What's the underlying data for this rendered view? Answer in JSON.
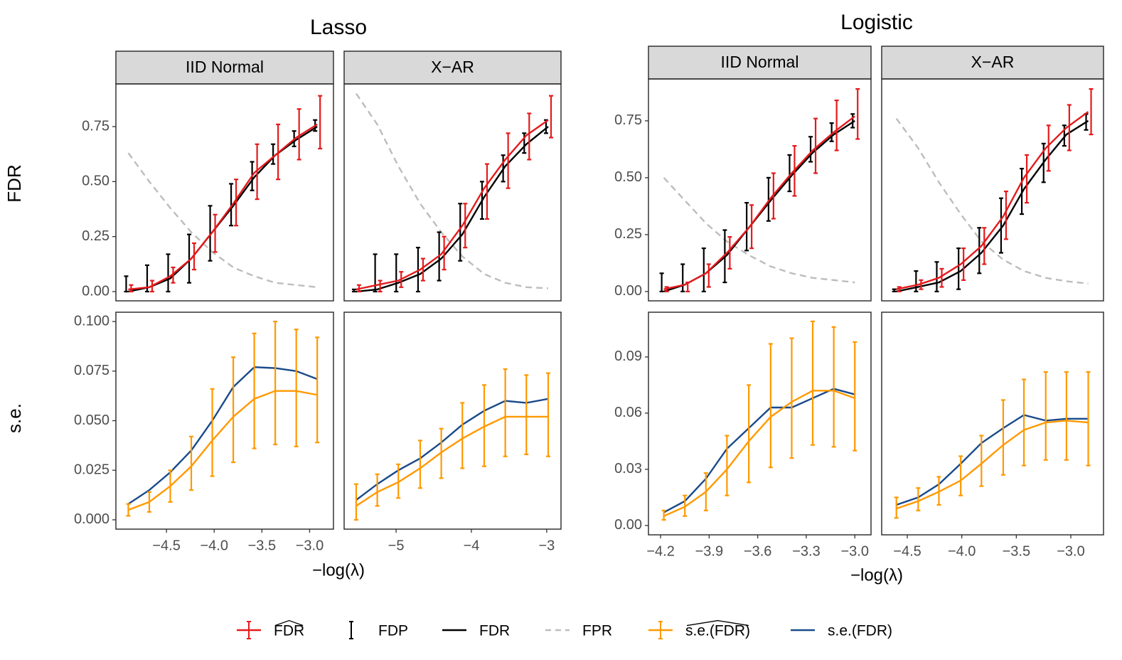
{
  "titles": [
    "Lasso",
    "Logistic"
  ],
  "row_labels": [
    "FDR",
    "s.e."
  ],
  "xlabels": [
    "−log(λ)",
    "−log(λ)"
  ],
  "chart_data": [
    {
      "type": "line",
      "strip": "IID Normal",
      "x": [
        -4.9,
        -4.68,
        -4.46,
        -4.24,
        -4.02,
        -3.8,
        -3.58,
        -3.36,
        -3.14,
        -2.92
      ],
      "xlim": [
        -5.03,
        -2.75
      ],
      "ylim": [
        -0.042,
        0.944
      ],
      "yticks": [
        {
          "value": 0,
          "label": "0.00"
        },
        0.25,
        {
          "value": 0.5,
          "label": "0.50"
        },
        0.75
      ],
      "series": [
        {
          "name": "FDR",
          "hat": true,
          "color": "#e41a1c",
          "values": [
            0.01,
            0.02,
            0.07,
            0.15,
            0.27,
            0.4,
            0.54,
            0.62,
            0.7,
            0.76
          ],
          "lower": [
            0.0,
            0.0,
            0.04,
            0.1,
            0.18,
            0.3,
            0.42,
            0.51,
            0.6,
            0.65
          ],
          "upper": [
            0.03,
            0.05,
            0.11,
            0.22,
            0.35,
            0.51,
            0.67,
            0.76,
            0.83,
            0.89
          ]
        },
        {
          "name": "FDP",
          "color": "#000000",
          "lower": [
            0.0,
            0.0,
            0.0,
            0.04,
            0.14,
            0.3,
            0.46,
            0.58,
            0.66,
            0.73
          ],
          "upper": [
            0.07,
            0.12,
            0.17,
            0.26,
            0.39,
            0.49,
            0.59,
            0.67,
            0.73,
            0.78
          ]
        },
        {
          "name": "FDR",
          "color": "#000000",
          "values": [
            0.0,
            0.02,
            0.06,
            0.15,
            0.27,
            0.39,
            0.52,
            0.62,
            0.69,
            0.75
          ]
        },
        {
          "name": "FPR",
          "color": "#bdbdbd",
          "dashed": true,
          "values": [
            0.63,
            0.5,
            0.38,
            0.27,
            0.18,
            0.11,
            0.07,
            0.04,
            0.03,
            0.02
          ]
        }
      ]
    },
    {
      "type": "line",
      "strip": "X−AR",
      "x": [
        -5.53,
        -5.25,
        -4.97,
        -4.68,
        -4.4,
        -4.12,
        -3.83,
        -3.55,
        -3.27,
        -2.98
      ],
      "xlim": [
        -5.69,
        -2.81
      ],
      "ylim": [
        -0.042,
        0.944
      ],
      "series": [
        {
          "name": "FDR",
          "hat": true,
          "color": "#e41a1c",
          "values": [
            0.01,
            0.03,
            0.05,
            0.1,
            0.17,
            0.3,
            0.47,
            0.6,
            0.71,
            0.78
          ],
          "lower": [
            0.0,
            0.0,
            0.02,
            0.05,
            0.1,
            0.2,
            0.33,
            0.47,
            0.6,
            0.7
          ],
          "upper": [
            0.03,
            0.05,
            0.09,
            0.15,
            0.25,
            0.4,
            0.58,
            0.72,
            0.81,
            0.89
          ]
        },
        {
          "name": "FDP",
          "color": "#000000",
          "lower": [
            0.0,
            0.0,
            0.0,
            0.0,
            0.05,
            0.14,
            0.33,
            0.5,
            0.63,
            0.72
          ],
          "upper": [
            0.01,
            0.17,
            0.17,
            0.2,
            0.27,
            0.4,
            0.5,
            0.62,
            0.72,
            0.78
          ]
        },
        {
          "name": "FDR",
          "color": "#000000",
          "values": [
            0.0,
            0.01,
            0.04,
            0.08,
            0.15,
            0.26,
            0.43,
            0.57,
            0.67,
            0.75
          ]
        },
        {
          "name": "FPR",
          "color": "#bdbdbd",
          "dashed": true,
          "values": [
            0.9,
            0.76,
            0.57,
            0.4,
            0.27,
            0.16,
            0.08,
            0.04,
            0.02,
            0.015
          ]
        }
      ]
    },
    {
      "type": "line",
      "x": [
        -4.9,
        -4.68,
        -4.46,
        -4.24,
        -4.02,
        -3.8,
        -3.58,
        -3.36,
        -3.14,
        -2.92
      ],
      "xlim": [
        -5.03,
        -2.75
      ],
      "ylim": [
        -0.0047,
        0.1047
      ],
      "yticks": [
        {
          "value": 0,
          "label": "0.000"
        },
        0.025,
        {
          "value": 0.05,
          "label": "0.050"
        },
        0.075,
        {
          "value": 0.1,
          "label": "0.100"
        }
      ],
      "xticks": [
        {
          "value": -4.5,
          "label": "−4.5"
        },
        {
          "value": -4,
          "label": "−4.0"
        },
        {
          "value": -3.5,
          "label": "−3.5"
        },
        {
          "value": -3,
          "label": "−3.0"
        }
      ],
      "series": [
        {
          "name": "s.e.(FDR)",
          "hat": true,
          "color": "#ff9900",
          "values": [
            0.005,
            0.009,
            0.017,
            0.027,
            0.04,
            0.052,
            0.061,
            0.065,
            0.065,
            0.063
          ],
          "lower": [
            0.002,
            0.004,
            0.009,
            0.015,
            0.022,
            0.029,
            0.036,
            0.038,
            0.037,
            0.039
          ],
          "upper": [
            0.008,
            0.014,
            0.025,
            0.042,
            0.066,
            0.082,
            0.094,
            0.1,
            0.096,
            0.092
          ]
        },
        {
          "name": "s.e.(FDR)",
          "color": "#1a4a8a",
          "values": [
            0.008,
            0.015,
            0.024,
            0.035,
            0.05,
            0.067,
            0.077,
            0.0765,
            0.075,
            0.071
          ]
        }
      ]
    },
    {
      "type": "line",
      "x": [
        -5.53,
        -5.25,
        -4.97,
        -4.68,
        -4.4,
        -4.12,
        -3.83,
        -3.55,
        -3.27,
        -2.98
      ],
      "xlim": [
        -5.69,
        -2.81
      ],
      "ylim": [
        -0.0047,
        0.1047
      ],
      "xticks": [
        {
          "value": -5,
          "label": "−5"
        },
        {
          "value": -4,
          "label": "−4"
        },
        {
          "value": -3,
          "label": "−3"
        }
      ],
      "series": [
        {
          "name": "s.e.(FDR)",
          "hat": true,
          "color": "#ff9900",
          "values": [
            0.007,
            0.014,
            0.019,
            0.026,
            0.034,
            0.041,
            0.047,
            0.052,
            0.052,
            0.052
          ],
          "lower": [
            0.0,
            0.007,
            0.011,
            0.016,
            0.021,
            0.026,
            0.027,
            0.032,
            0.033,
            0.032
          ],
          "upper": [
            0.018,
            0.023,
            0.028,
            0.04,
            0.046,
            0.059,
            0.068,
            0.076,
            0.073,
            0.074
          ]
        },
        {
          "name": "s.e.(FDR)",
          "color": "#1a4a8a",
          "values": [
            0.01,
            0.018,
            0.025,
            0.031,
            0.039,
            0.048,
            0.055,
            0.06,
            0.059,
            0.061
          ]
        }
      ]
    },
    {
      "type": "line",
      "strip": "IID Normal",
      "x": [
        -4.18,
        -4.05,
        -3.92,
        -3.79,
        -3.655,
        -3.52,
        -3.39,
        -3.26,
        -3.13,
        -3.0
      ],
      "xlim": [
        -4.275,
        -2.9
      ],
      "ylim": [
        -0.041,
        0.934
      ],
      "yticks": [
        {
          "value": 0,
          "label": "0.00"
        },
        0.25,
        {
          "value": 0.5,
          "label": "0.50"
        },
        0.75
      ],
      "series": [
        {
          "name": "FDR",
          "hat": true,
          "color": "#e41a1c",
          "values": [
            0.01,
            0.03,
            0.08,
            0.17,
            0.28,
            0.41,
            0.52,
            0.62,
            0.7,
            0.77
          ],
          "lower": [
            0.0,
            0.0,
            0.02,
            0.1,
            0.19,
            0.32,
            0.42,
            0.52,
            0.62,
            0.67
          ],
          "upper": [
            0.02,
            0.04,
            0.12,
            0.24,
            0.38,
            0.52,
            0.64,
            0.76,
            0.84,
            0.89
          ]
        },
        {
          "name": "FDP",
          "color": "#000000",
          "lower": [
            0.0,
            0.0,
            0.0,
            0.04,
            0.18,
            0.31,
            0.44,
            0.57,
            0.66,
            0.72
          ],
          "upper": [
            0.08,
            0.12,
            0.19,
            0.27,
            0.39,
            0.5,
            0.6,
            0.68,
            0.74,
            0.78
          ]
        },
        {
          "name": "FDR",
          "color": "#000000",
          "values": [
            0.0,
            0.03,
            0.08,
            0.16,
            0.28,
            0.4,
            0.51,
            0.61,
            0.69,
            0.75
          ]
        },
        {
          "name": "FPR",
          "color": "#bdbdbd",
          "dashed": true,
          "values": [
            0.5,
            0.4,
            0.3,
            0.22,
            0.16,
            0.11,
            0.08,
            0.06,
            0.05,
            0.04
          ]
        }
      ]
    },
    {
      "type": "line",
      "strip": "X−AR",
      "x": [
        -4.6,
        -4.4,
        -4.21,
        -4.01,
        -3.82,
        -3.62,
        -3.43,
        -3.23,
        -3.04,
        -2.84
      ],
      "xlim": [
        -4.735,
        -2.7
      ],
      "ylim": [
        -0.041,
        0.934
      ],
      "series": [
        {
          "name": "FDR",
          "hat": true,
          "color": "#e41a1c",
          "values": [
            0.01,
            0.03,
            0.06,
            0.12,
            0.2,
            0.33,
            0.5,
            0.63,
            0.72,
            0.79
          ],
          "lower": [
            0.0,
            0.01,
            0.02,
            0.05,
            0.12,
            0.23,
            0.39,
            0.53,
            0.62,
            0.69
          ],
          "upper": [
            0.02,
            0.05,
            0.1,
            0.19,
            0.28,
            0.44,
            0.6,
            0.73,
            0.82,
            0.89
          ]
        },
        {
          "name": "FDP",
          "color": "#000000",
          "lower": [
            0.0,
            0.0,
            0.0,
            0.01,
            0.08,
            0.17,
            0.34,
            0.48,
            0.64,
            0.71
          ],
          "upper": [
            0.01,
            0.09,
            0.13,
            0.19,
            0.28,
            0.41,
            0.54,
            0.65,
            0.73,
            0.78
          ]
        },
        {
          "name": "FDR",
          "color": "#000000",
          "values": [
            0.0,
            0.02,
            0.04,
            0.09,
            0.17,
            0.29,
            0.45,
            0.58,
            0.69,
            0.75
          ]
        },
        {
          "name": "FPR",
          "color": "#bdbdbd",
          "dashed": true,
          "values": [
            0.76,
            0.63,
            0.48,
            0.34,
            0.22,
            0.14,
            0.09,
            0.06,
            0.045,
            0.035
          ]
        }
      ]
    },
    {
      "type": "line",
      "x": [
        -4.18,
        -4.05,
        -3.92,
        -3.79,
        -3.655,
        -3.52,
        -3.39,
        -3.26,
        -3.13,
        -3.0
      ],
      "xlim": [
        -4.275,
        -2.9
      ],
      "ylim": [
        -0.005,
        0.1139
      ],
      "yticks": [
        {
          "value": 0,
          "label": "0.00"
        },
        0.03,
        0.06,
        0.09
      ],
      "xticks": [
        {
          "value": -4.2,
          "label": "−4.2"
        },
        {
          "value": -3.9,
          "label": "−3.9"
        },
        {
          "value": -3.6,
          "label": "−3.6"
        },
        {
          "value": -3.3,
          "label": "−3.3"
        },
        {
          "value": -3,
          "label": "−3.0"
        }
      ],
      "series": [
        {
          "name": "s.e.(FDR)",
          "hat": true,
          "color": "#ff9900",
          "values": [
            0.005,
            0.01,
            0.018,
            0.03,
            0.045,
            0.058,
            0.066,
            0.072,
            0.072,
            0.068
          ],
          "lower": [
            0.003,
            0.005,
            0.008,
            0.016,
            0.023,
            0.031,
            0.036,
            0.043,
            0.042,
            0.04
          ],
          "upper": [
            0.008,
            0.016,
            0.028,
            0.048,
            0.075,
            0.097,
            0.1,
            0.109,
            0.106,
            0.098
          ]
        },
        {
          "name": "s.e.(FDR)",
          "color": "#1a4a8a",
          "values": [
            0.007,
            0.013,
            0.025,
            0.041,
            0.052,
            0.063,
            0.063,
            0.068,
            0.073,
            0.07
          ]
        }
      ]
    },
    {
      "type": "line",
      "x": [
        -4.6,
        -4.4,
        -4.21,
        -4.01,
        -3.82,
        -3.62,
        -3.43,
        -3.23,
        -3.04,
        -2.84
      ],
      "xlim": [
        -4.735,
        -2.7
      ],
      "ylim": [
        -0.005,
        0.1139
      ],
      "xticks": [
        {
          "value": -4.5,
          "label": "−4.5"
        },
        {
          "value": -4,
          "label": "−4.0"
        },
        {
          "value": -3.5,
          "label": "−3.5"
        },
        {
          "value": -3,
          "label": "−3.0"
        }
      ],
      "series": [
        {
          "name": "s.e.(FDR)",
          "hat": true,
          "color": "#ff9900",
          "values": [
            0.009,
            0.013,
            0.018,
            0.024,
            0.033,
            0.043,
            0.051,
            0.055,
            0.056,
            0.055
          ],
          "lower": [
            0.004,
            0.008,
            0.011,
            0.016,
            0.021,
            0.027,
            0.032,
            0.035,
            0.035,
            0.032
          ],
          "upper": [
            0.015,
            0.02,
            0.026,
            0.037,
            0.048,
            0.067,
            0.078,
            0.082,
            0.082,
            0.082
          ]
        },
        {
          "name": "s.e.(FDR)",
          "color": "#1a4a8a",
          "values": [
            0.011,
            0.015,
            0.022,
            0.033,
            0.044,
            0.052,
            0.059,
            0.056,
            0.057,
            0.057
          ]
        }
      ]
    }
  ]
}
